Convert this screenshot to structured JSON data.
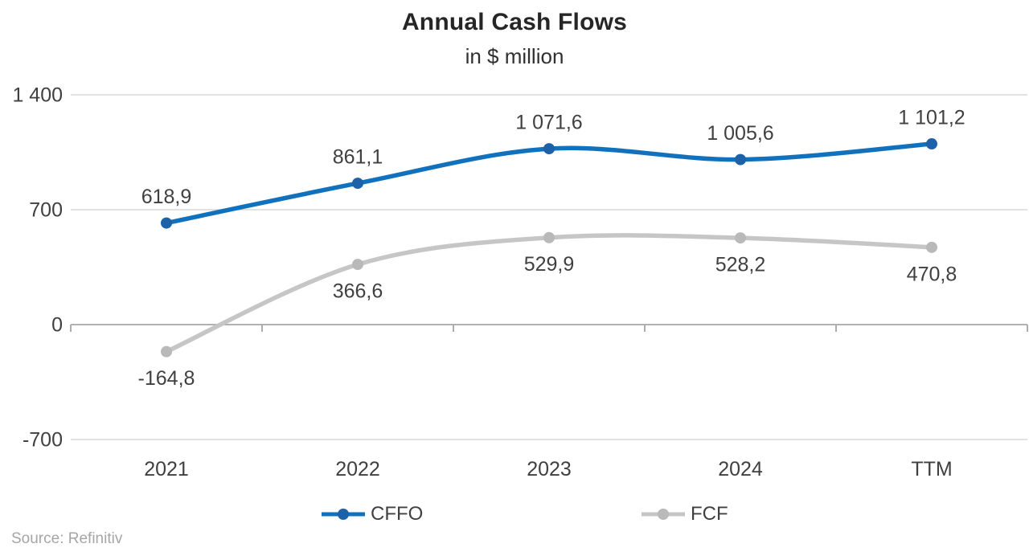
{
  "source": "Source: Refinitiv",
  "chart_data": {
    "type": "line",
    "title": "Annual Cash Flows",
    "subtitle": "in $ million",
    "categories": [
      "2021",
      "2022",
      "2023",
      "2024",
      "TTM"
    ],
    "series": [
      {
        "name": "CFFO",
        "values": [
          618.9,
          861.1,
          1071.6,
          1005.6,
          1101.2
        ],
        "labels": [
          "618,9",
          "861,1",
          "1 071,6",
          "1 005,6",
          "1 101,2"
        ],
        "color": "#1171BD",
        "marker_color": "#1D61A8",
        "label_side": "above"
      },
      {
        "name": "FCF",
        "values": [
          -164.8,
          366.6,
          529.9,
          528.2,
          470.8
        ],
        "labels": [
          "-164,8",
          "366,6",
          "529,9",
          "528,2",
          "470,8"
        ],
        "color": "#C6C6C6",
        "marker_color": "#B9B9B9",
        "label_side": "below"
      }
    ],
    "y_ticks": [
      {
        "value": 1400,
        "label": "1 400"
      },
      {
        "value": 700,
        "label": "700"
      },
      {
        "value": 0,
        "label": "0"
      },
      {
        "value": -700,
        "label": "-700"
      }
    ],
    "ylim": [
      -700,
      1400
    ],
    "smooth": true,
    "gridlines": true,
    "legend_position": "bottom",
    "colors": {
      "grid": "#D9D9D9",
      "axis": "#A6A6A6",
      "text": "#404040",
      "title": "#262626",
      "source": "#A6A6A6",
      "background": "#FFFFFF"
    }
  }
}
